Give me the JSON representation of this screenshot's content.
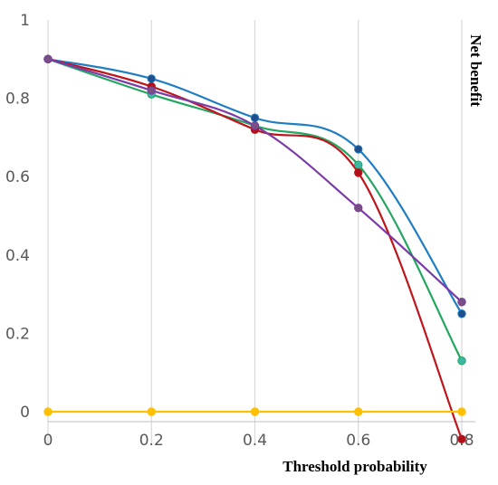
{
  "chart_data": {
    "type": "line",
    "title": "",
    "xlabel": "Threshold probability",
    "ylabel": "Net benefit",
    "x": [
      0,
      0.2,
      0.4,
      0.6,
      0.8
    ],
    "xticks": [
      "0",
      "0.2",
      "0.4",
      "0.6",
      "0.8"
    ],
    "yticks": [
      "0",
      "0.2",
      "0.4",
      "0.6",
      "0.8",
      "1"
    ],
    "xlim": [
      0,
      0.8
    ],
    "ylim": [
      0,
      1
    ],
    "grid": "vertical",
    "legend": "none",
    "series": [
      {
        "color": "#1f7ec2",
        "marker_color": "#1f4e8c",
        "values": [
          0.9,
          0.85,
          0.75,
          0.67,
          0.25
        ]
      },
      {
        "color": "#22a660",
        "marker_color": "#3cb8a8",
        "values": [
          0.9,
          0.81,
          0.73,
          0.63,
          0.13
        ]
      },
      {
        "color": "#c0141c",
        "marker_color": "#b01018",
        "values": [
          0.9,
          0.83,
          0.72,
          0.61,
          -0.07
        ]
      },
      {
        "color": "#7a3aa8",
        "marker_color": "#7a4f86",
        "values": [
          0.9,
          0.82,
          0.73,
          0.52,
          0.28
        ]
      },
      {
        "color": "#ffc000",
        "marker_color": "#ffc000",
        "values": [
          0,
          0,
          0,
          0,
          0
        ]
      }
    ]
  }
}
